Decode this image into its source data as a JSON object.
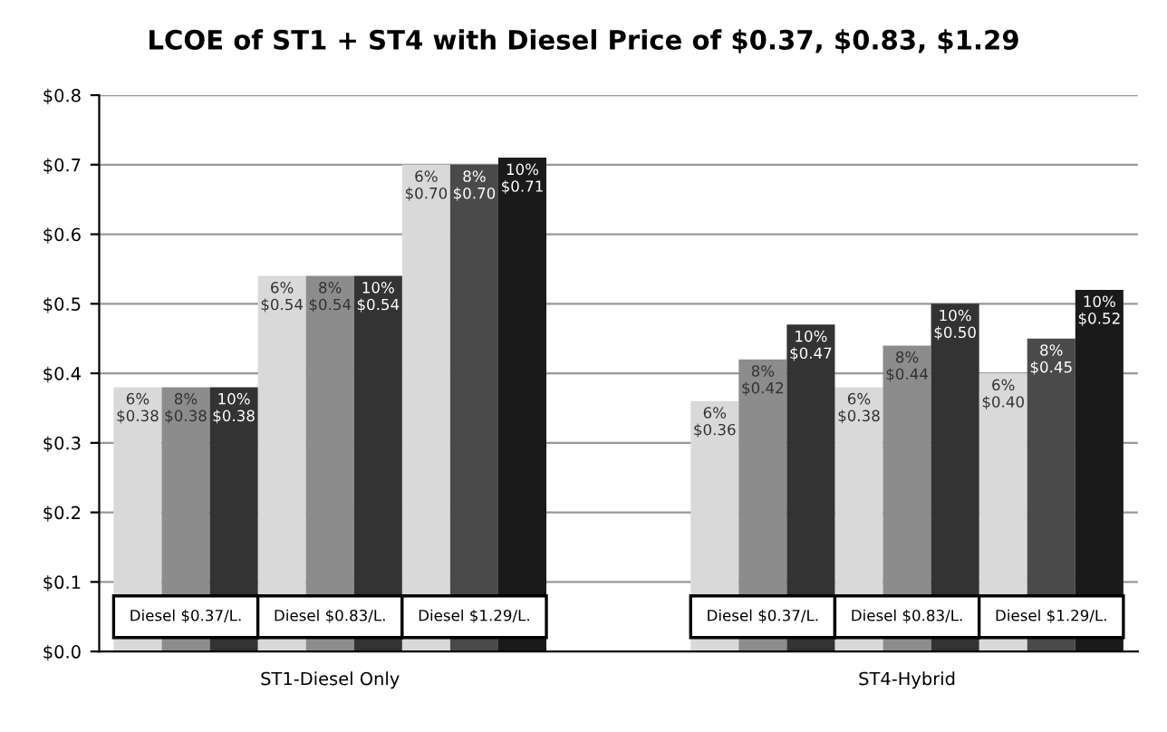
{
  "chart_data": {
    "type": "bar",
    "title": "LCOE of ST1 + ST4 with Diesel Price of $0.37, $0.83, $1.29",
    "categories": [
      "Diesel $0.37/L.",
      "Diesel $0.83/L.",
      "Diesel $1.29/L.",
      "Diesel $0.37/L.",
      "Diesel $0.83/L.",
      "Diesel $1.29/L."
    ],
    "series": [
      {
        "name": "6%",
        "colors": [
          "#d9d9d9",
          "#d9d9d9",
          "#d9d9d9",
          "#d9d9d9",
          "#d9d9d9",
          "#d9d9d9"
        ],
        "values": [
          0.38,
          0.54,
          0.7,
          0.36,
          0.38,
          0.4
        ],
        "value_labels": [
          "$0.38",
          "$0.54",
          "$0.70",
          "$0.36",
          "$0.38",
          "$0.40"
        ]
      },
      {
        "name": "8%",
        "colors": [
          "#8c8c8c",
          "#8c8c8c",
          "#4a4a4a",
          "#8c8c8c",
          "#8c8c8c",
          "#4a4a4a"
        ],
        "values": [
          0.38,
          0.54,
          0.7,
          0.42,
          0.44,
          0.45
        ],
        "value_labels": [
          "$0.38",
          "$0.54",
          "$0.70",
          "$0.42",
          "$0.44",
          "$0.45"
        ]
      },
      {
        "name": "10%",
        "colors": [
          "#333333",
          "#333333",
          "#1a1a1a",
          "#333333",
          "#333333",
          "#1a1a1a"
        ],
        "values": [
          0.38,
          0.54,
          0.71,
          0.47,
          0.5,
          0.52
        ],
        "value_labels": [
          "$0.38",
          "$0.54",
          "$0.71",
          "$0.47",
          "$0.50",
          "$0.52"
        ]
      }
    ],
    "ylim": [
      0,
      0.8
    ],
    "yticks": [
      {
        "value": 0,
        "label": "$0.0"
      },
      {
        "value": 0.1,
        "label": "$0.1"
      },
      {
        "value": 0.2,
        "label": "$0.2"
      },
      {
        "value": 0.3,
        "label": "$0.3"
      },
      {
        "value": 0.4,
        "label": "$0.4"
      },
      {
        "value": 0.5,
        "label": "$0.5"
      },
      {
        "value": 0.6,
        "label": "$0.6"
      },
      {
        "value": 0.7,
        "label": "$0.7"
      },
      {
        "value": 0.8,
        "label": "$0.8"
      }
    ],
    "grid": "y",
    "annotations": [
      "ST1-Diesel Only",
      "ST4-Hybrid"
    ]
  }
}
